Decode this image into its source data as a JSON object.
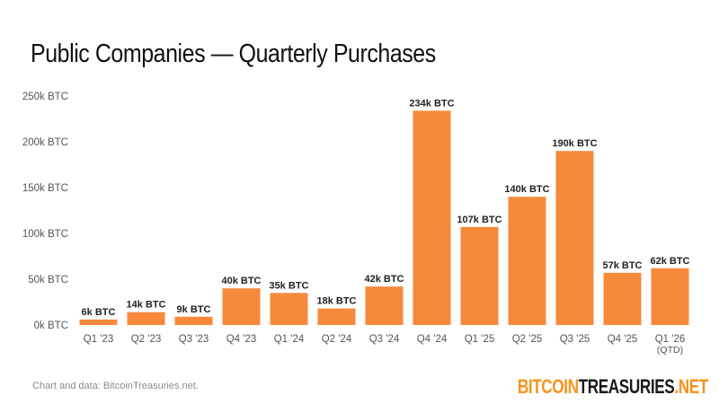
{
  "chart_data": {
    "type": "bar",
    "title": "Public Companies — Quarterly Purchases",
    "categories": [
      "Q1 '23",
      "Q2 '23",
      "Q3 '23",
      "Q4 '23",
      "Q1 '24",
      "Q2 '24",
      "Q3 '24",
      "Q4 '24",
      "Q1 '25",
      "Q2 '25",
      "Q3 '25",
      "Q4 '25",
      "Q1 '26"
    ],
    "category_sublabels": [
      "",
      "",
      "",
      "",
      "",
      "",
      "",
      "",
      "",
      "",
      "",
      "",
      "(QTD)"
    ],
    "values": [
      6,
      14,
      9,
      40,
      35,
      18,
      42,
      234,
      107,
      140,
      190,
      57,
      62
    ],
    "data_labels": [
      "6k BTC",
      "14k BTC",
      "9k BTC",
      "40k BTC",
      "35k BTC",
      "18k BTC",
      "42k BTC",
      "234k BTC",
      "107k BTC",
      "140k BTC",
      "190k BTC",
      "57k BTC",
      "62k BTC"
    ],
    "yticks": [
      0,
      50,
      100,
      150,
      200,
      250
    ],
    "ytick_labels": [
      "0k BTC",
      "50k BTC",
      "100k BTC",
      "150k BTC",
      "200k BTC",
      "250k BTC"
    ],
    "ylim": [
      0,
      250
    ],
    "xlabel": "",
    "ylabel": "",
    "unit": "k BTC",
    "bar_color": "#f7893a",
    "grid": false
  },
  "footer": {
    "note": "Chart and data: BitcoinTreasuries.net.",
    "logo_part1": "BITCOIN",
    "logo_part2": "TREASURIES",
    "logo_part3": ".NET"
  }
}
